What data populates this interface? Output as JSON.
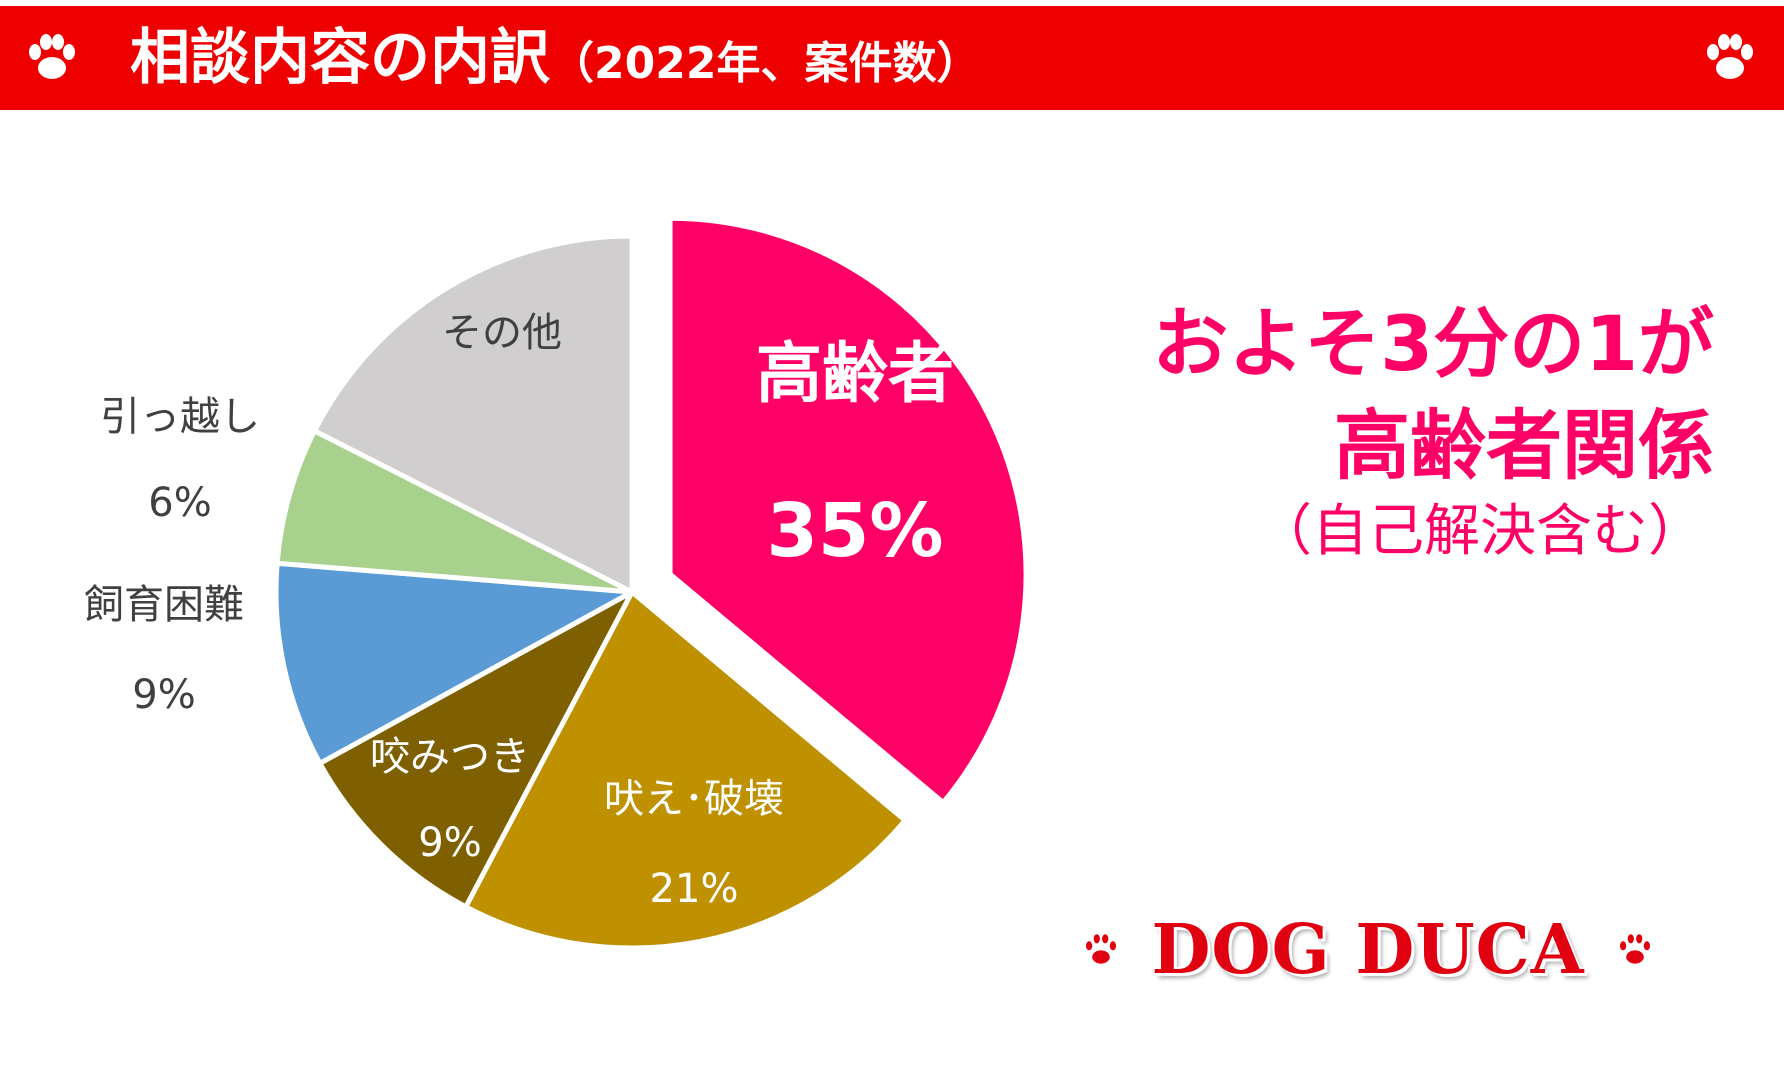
{
  "header": {
    "title": "相談内容の内訳",
    "subtitle": "（2022年、案件数）"
  },
  "colors": {
    "header_bg": "#ee0000",
    "accent": "#ff0066",
    "logo": "#e00010"
  },
  "chart_data": {
    "type": "pie",
    "title": "相談内容の内訳（2022年、案件数）",
    "unit": "%",
    "exploded": "高齢者",
    "slices": [
      {
        "label": "高齢者",
        "value": 35,
        "display": "35%",
        "color": "#ff0066",
        "label_color": "#ffffff"
      },
      {
        "label": "吠え･破壊",
        "value": 21,
        "display": "21%",
        "color": "#bf9000",
        "label_color": "#ffffff"
      },
      {
        "label": "咬みつき",
        "value": 9,
        "display": "9%",
        "color": "#7f6000",
        "label_color": "#ffffff"
      },
      {
        "label": "飼育困難",
        "value": 9,
        "display": "9%",
        "color": "#5b9bd5",
        "label_color": "#404040"
      },
      {
        "label": "引っ越し",
        "value": 6,
        "display": "6%",
        "color": "#a9d18e",
        "label_color": "#404040"
      },
      {
        "label": "その他",
        "value": 17,
        "display": "",
        "color": "#d0cece",
        "label_color": "#404040"
      }
    ]
  },
  "callout": {
    "line1": "およそ3分の1が",
    "line2": "高齢者関係",
    "line3": "（自己解決含む）"
  },
  "logo": {
    "text": "DOG DUCA",
    "icon": "paw-icon"
  }
}
